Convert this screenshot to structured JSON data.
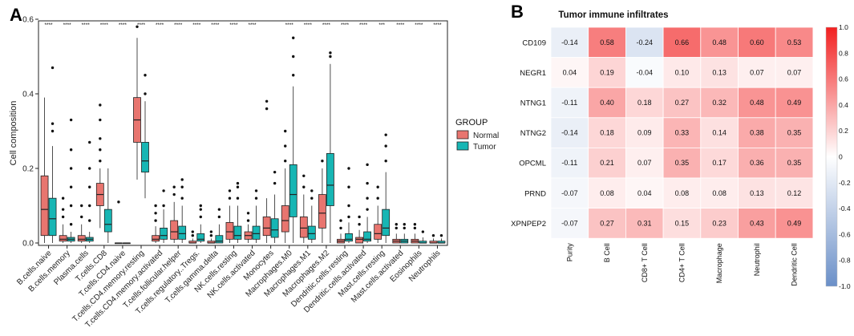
{
  "chart_data": [
    {
      "type": "boxplot",
      "panel_label": "A",
      "ylabel": "Cell composition",
      "ylim": [
        0,
        0.6
      ],
      "yticks": [
        "0.0",
        "0.2",
        "0.4",
        "0.6"
      ],
      "legend": {
        "title": "GROUP",
        "entries": [
          "Normal",
          "Tumor"
        ],
        "colors": [
          "#E8756F",
          "#17B6B4"
        ],
        "position": "right"
      },
      "categories": [
        "B.cells.naive",
        "B.cells.memory",
        "Plasma.cells",
        "T.cells.CD8",
        "T.cells.CD4.naive",
        "T.cells.CD4.memory.resting",
        "T.cells.CD4.memory.activated",
        "T.cells.follicular.helper",
        "T.cells.regulatory..Tregs.",
        "T.cells.gamma.delta",
        "NK.cells.resting",
        "NK.cells.activated",
        "Monocytes",
        "Macrophages.M0",
        "Macrophages.M1",
        "Macrophages.M2",
        "Dendritic.cells.resting",
        "Dendritic.cells.activated",
        "Mast.cells.resting",
        "Mast.cells.activated",
        "Eosinophils",
        "Neutrophils"
      ],
      "significance": [
        "****",
        "****",
        "****",
        "****",
        "****",
        "****",
        "****",
        "****",
        "****",
        "****",
        "****",
        "****",
        "",
        "****",
        "****",
        "****",
        "****",
        "****",
        "***",
        "****",
        "****",
        "****"
      ],
      "series": [
        {
          "name": "Normal",
          "q1": [
            0.02,
            0.005,
            0.005,
            0.1,
            0.0,
            0.27,
            0.005,
            0.01,
            0.0,
            0.0,
            0.01,
            0.01,
            0.02,
            0.03,
            0.015,
            0.04,
            0.0,
            0.0,
            0.01,
            0.0,
            0.0,
            0.0
          ],
          "median": [
            0.09,
            0.01,
            0.01,
            0.13,
            0.0,
            0.33,
            0.01,
            0.03,
            0.0,
            0.0,
            0.03,
            0.02,
            0.04,
            0.06,
            0.04,
            0.08,
            0.005,
            0.01,
            0.025,
            0.005,
            0.005,
            0.0
          ],
          "q3": [
            0.18,
            0.02,
            0.02,
            0.16,
            0.0,
            0.39,
            0.02,
            0.06,
            0.005,
            0.005,
            0.055,
            0.03,
            0.07,
            0.1,
            0.07,
            0.13,
            0.01,
            0.015,
            0.05,
            0.01,
            0.01,
            0.005
          ],
          "whislo": [
            0.0,
            0.0,
            0.0,
            0.04,
            0.0,
            0.17,
            0.0,
            0.0,
            0.0,
            0.0,
            0.0,
            0.0,
            0.0,
            0.0,
            0.0,
            0.0,
            0.0,
            0.0,
            0.0,
            0.0,
            0.0,
            0.0
          ],
          "whishi": [
            0.39,
            0.05,
            0.05,
            0.2,
            0.0,
            0.55,
            0.045,
            0.11,
            0.012,
            0.012,
            0.1,
            0.05,
            0.12,
            0.2,
            0.13,
            0.2,
            0.025,
            0.035,
            0.1,
            0.025,
            0.025,
            0.012
          ],
          "fliers": [
            [],
            [
              0.07,
              0.09,
              0.12
            ],
            [
              0.07,
              0.1
            ],
            [
              0.22,
              0.25,
              0.28,
              0.33,
              0.37
            ],
            [
              0.11
            ],
            [
              0.58
            ],
            [
              0.06,
              0.08,
              0.1
            ],
            [
              0.13,
              0.15
            ],
            [
              0.02,
              0.03
            ],
            [
              0.02,
              0.03
            ],
            [
              0.12,
              0.14
            ],
            [
              0.06,
              0.08
            ],
            [
              0.38,
              0.36
            ],
            [
              0.22,
              0.26,
              0.3
            ],
            [
              0.15,
              0.18
            ],
            [
              0.22
            ],
            [
              0.04,
              0.06
            ],
            [
              0.05,
              0.07
            ],
            [
              0.12,
              0.15
            ],
            [
              0.04,
              0.05
            ],
            [
              0.04,
              0.05
            ],
            [
              0.02
            ]
          ]
        },
        {
          "name": "Tumor",
          "q1": [
            0.02,
            0.005,
            0.005,
            0.03,
            0.0,
            0.19,
            0.01,
            0.01,
            0.005,
            0.0,
            0.01,
            0.01,
            0.015,
            0.07,
            0.01,
            0.1,
            0.005,
            0.005,
            0.02,
            0.0,
            0.0,
            0.0
          ],
          "median": [
            0.065,
            0.01,
            0.01,
            0.05,
            0.0,
            0.22,
            0.02,
            0.025,
            0.01,
            0.005,
            0.02,
            0.025,
            0.035,
            0.13,
            0.025,
            0.155,
            0.01,
            0.01,
            0.04,
            0.005,
            0.0,
            0.0
          ],
          "q3": [
            0.12,
            0.015,
            0.015,
            0.09,
            0.0,
            0.27,
            0.04,
            0.045,
            0.025,
            0.02,
            0.045,
            0.045,
            0.065,
            0.21,
            0.045,
            0.24,
            0.025,
            0.03,
            0.09,
            0.01,
            0.005,
            0.005
          ],
          "whislo": [
            0.0,
            0.0,
            0.0,
            0.0,
            0.0,
            0.12,
            0.0,
            0.0,
            0.0,
            0.0,
            0.0,
            0.0,
            0.0,
            0.0,
            0.0,
            0.0,
            0.0,
            0.0,
            0.0,
            0.0,
            0.0,
            0.0
          ],
          "whishi": [
            0.26,
            0.03,
            0.03,
            0.2,
            0.0,
            0.38,
            0.09,
            0.1,
            0.05,
            0.05,
            0.1,
            0.1,
            0.13,
            0.42,
            0.1,
            0.48,
            0.055,
            0.07,
            0.19,
            0.025,
            0.015,
            0.012
          ],
          "fliers": [
            [
              0.3,
              0.32,
              0.47
            ],
            [
              0.05,
              0.1,
              0.15,
              0.2,
              0.25,
              0.33
            ],
            [
              0.06,
              0.1,
              0.15,
              0.2,
              0.27
            ],
            [],
            [],
            [
              0.4,
              0.45
            ],
            [
              0.1,
              0.14
            ],
            [
              0.12,
              0.15,
              0.17
            ],
            [
              0.07,
              0.09,
              0.1
            ],
            [
              0.07,
              0.09
            ],
            [
              0.12,
              0.15,
              0.16
            ],
            [
              0.12,
              0.14
            ],
            [
              0.16,
              0.19
            ],
            [
              0.45,
              0.5,
              0.55
            ],
            [
              0.12,
              0.14
            ],
            [
              0.5,
              0.51
            ],
            [
              0.07,
              0.1,
              0.15,
              0.2
            ],
            [
              0.09,
              0.12,
              0.16,
              0.21
            ],
            [
              0.22,
              0.26,
              0.29
            ],
            [
              0.04,
              0.05
            ],
            [
              0.03
            ],
            [
              0.02
            ]
          ]
        }
      ]
    },
    {
      "type": "heatmap",
      "panel_label": "B",
      "title": "Tumor immune infiltrates",
      "rows": [
        "CD109",
        "NEGR1",
        "NTNG1",
        "NTNG2",
        "OPCML",
        "PRND",
        "XPNPEP2"
      ],
      "columns": [
        "Purity",
        "B Cell",
        "CD8+ T Cell",
        "CD4+ T Cell",
        "Macrophage",
        "Neutrophil",
        "Dendritic Cell"
      ],
      "values": [
        [
          -0.14,
          0.58,
          -0.24,
          0.66,
          0.48,
          0.6,
          0.53
        ],
        [
          0.04,
          0.19,
          -0.04,
          0.1,
          0.13,
          0.07,
          0.07
        ],
        [
          -0.11,
          0.4,
          0.18,
          0.27,
          0.32,
          0.48,
          0.49
        ],
        [
          -0.14,
          0.18,
          0.09,
          0.33,
          0.14,
          0.38,
          0.35
        ],
        [
          -0.11,
          0.21,
          0.07,
          0.35,
          0.17,
          0.36,
          0.35
        ],
        [
          -0.07,
          0.08,
          0.04,
          0.08,
          0.08,
          0.13,
          0.12
        ],
        [
          -0.07,
          0.27,
          0.31,
          0.15,
          0.23,
          0.43,
          0.49
        ]
      ],
      "colorbar": {
        "min": -1.0,
        "max": 1.0,
        "ticks": [
          "1.0",
          "0.8",
          "0.6",
          "0.4",
          "0.2",
          "0",
          "-0.2",
          "-0.4",
          "-0.6",
          "-0.8",
          "-1.0"
        ],
        "low_color": "#6A8FC8",
        "mid_color": "#FFFFFF",
        "high_color": "#F22020"
      }
    }
  ]
}
